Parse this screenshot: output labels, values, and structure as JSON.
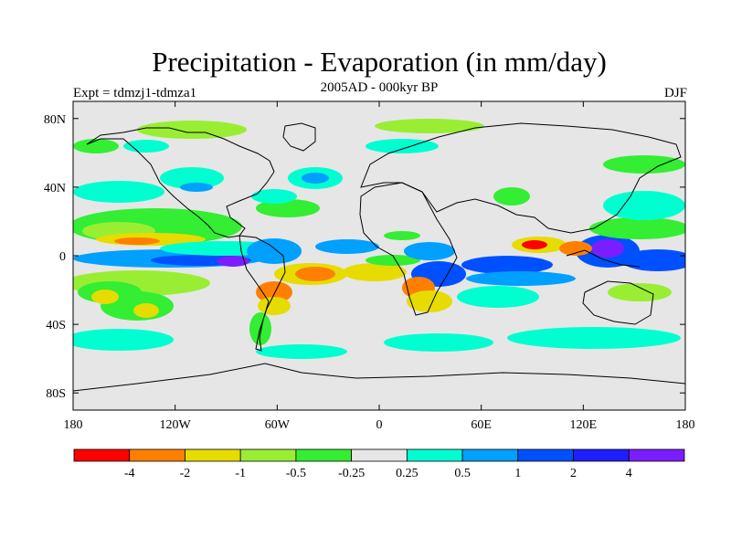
{
  "header": {
    "title": "Precipitation - Evaporation (in mm/day)",
    "subtitle": "2005AD - 000kyr BP",
    "experiment": "Expt = tdmzj1-tdmza1",
    "season": "DJF"
  },
  "map": {
    "projection": "equirectangular",
    "lon_range": [
      -180,
      180
    ],
    "lat_range": [
      -90,
      90
    ],
    "lat_ticks": [
      {
        "value": 80,
        "label": "80N"
      },
      {
        "value": 40,
        "label": "40N"
      },
      {
        "value": 0,
        "label": "0"
      },
      {
        "value": -40,
        "label": "40S"
      },
      {
        "value": -80,
        "label": "80S"
      }
    ],
    "lon_ticks": [
      {
        "value": -180,
        "label": "180"
      },
      {
        "value": -120,
        "label": "120W"
      },
      {
        "value": -60,
        "label": "60W"
      },
      {
        "value": 0,
        "label": "0"
      },
      {
        "value": 60,
        "label": "60E"
      },
      {
        "value": 120,
        "label": "120E"
      },
      {
        "value": 180,
        "label": "180"
      }
    ],
    "background_color": "#e6e6e6",
    "coastline_color": "#000000"
  },
  "colorbar": {
    "colors": [
      "#ff0000",
      "#ff8000",
      "#e6dc00",
      "#99ee33",
      "#33ee33",
      "#e6e6e6",
      "#00ffd0",
      "#00a0ff",
      "#0050ff",
      "#1e1eff",
      "#7b1eff"
    ],
    "labels": [
      "-4",
      "-2",
      "-1",
      "-0.5",
      "-0.25",
      "0.25",
      "0.5",
      "1",
      "2",
      "4"
    ]
  }
}
